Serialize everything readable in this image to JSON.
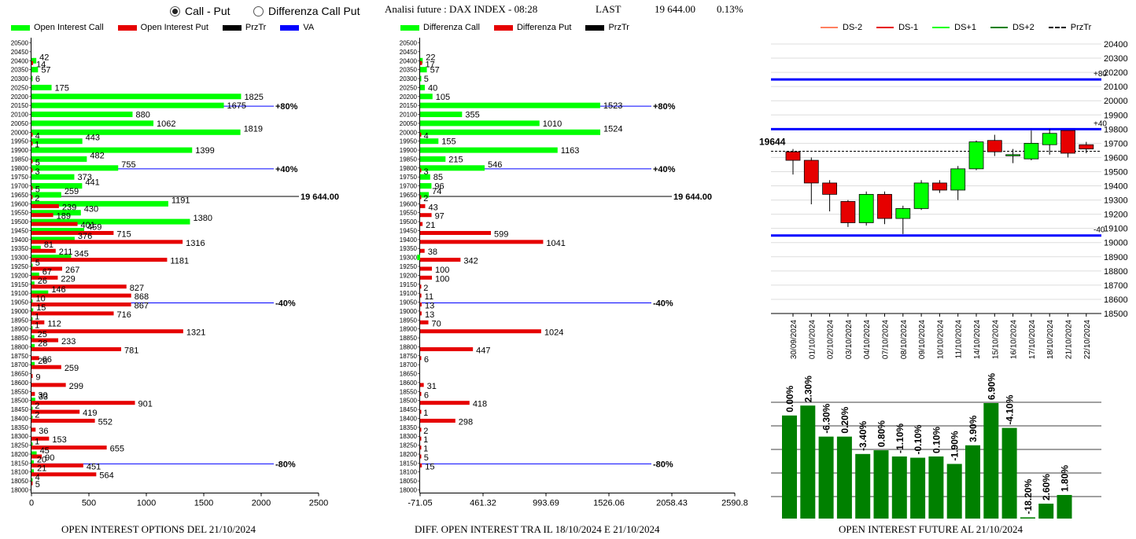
{
  "header": {
    "radio_call_put": "Call - Put",
    "radio_diff": "Differenza Call Put",
    "title": "Analisi future : DAX INDEX - 08:28",
    "last_label": "LAST",
    "last_value": "19 644.00",
    "change": "0.13%"
  },
  "colors": {
    "green": "#00ff00",
    "red": "#e60000",
    "blue": "#0000ff",
    "darkgreen": "#008000",
    "black": "#000000"
  },
  "captions": {
    "left": "OPEN INTEREST OPTIONS DEL 21/10/2024",
    "mid": "DIFF. OPEN INTEREST TRA IL 18/10/2024 E 21/10/2024",
    "right": "OPEN INTEREST FUTURE AL 21/10/2024"
  },
  "legend_left": [
    "Open Interest Call",
    "Open Interest Put",
    "PrzTr",
    "VA"
  ],
  "legend_mid": [
    "Differenza Call",
    "Differenza Put",
    "PrzTr"
  ],
  "legend_right": [
    "DS-2",
    "DS-1",
    "DS+1",
    "DS+2",
    "PrzTr"
  ],
  "chart_data": [
    {
      "type": "bar",
      "orientation": "horizontal",
      "strikes": [
        20500,
        20450,
        20400,
        20350,
        20300,
        20250,
        20200,
        20150,
        20100,
        20050,
        20000,
        19950,
        19900,
        19850,
        19800,
        19750,
        19700,
        19650,
        19600,
        19550,
        19500,
        19450,
        19400,
        19350,
        19300,
        19250,
        19200,
        19150,
        19100,
        19050,
        19000,
        18950,
        18900,
        18850,
        18800,
        18750,
        18700,
        18650,
        18600,
        18550,
        18500,
        18450,
        18400,
        18350,
        18300,
        18250,
        18200,
        18150,
        18100,
        18050,
        18000
      ],
      "series": [
        {
          "name": "Open Interest Call",
          "values": [
            0,
            0,
            42,
            57,
            6,
            175,
            1825,
            1675,
            880,
            1062,
            1819,
            443,
            1399,
            482,
            755,
            373,
            441,
            259,
            1191,
            430,
            1380,
            459,
            376,
            81,
            345,
            5,
            67,
            26,
            146,
            10,
            15,
            1,
            1,
            25,
            28,
            0,
            28,
            0,
            0,
            0,
            33,
            2,
            2,
            0,
            0,
            1,
            45,
            20,
            21,
            4,
            0
          ]
        },
        {
          "name": "Open Interest Put",
          "values": [
            0,
            0,
            14,
            0,
            0,
            0,
            0,
            0,
            0,
            0,
            4,
            1,
            0,
            5,
            3,
            0,
            5,
            2,
            239,
            189,
            401,
            715,
            1316,
            211,
            1181,
            267,
            229,
            827,
            868,
            867,
            716,
            112,
            1321,
            233,
            781,
            66,
            259,
            9,
            299,
            30,
            901,
            419,
            552,
            36,
            153,
            655,
            90,
            451,
            564,
            5,
            0
          ]
        }
      ],
      "annotations": [
        {
          "strike": 20150,
          "label": "+80%"
        },
        {
          "strike": 19800,
          "label": "+40%"
        },
        {
          "strike": 19650,
          "label": "19 644.00"
        },
        {
          "strike": 19050,
          "label": "-40%"
        },
        {
          "strike": 18150,
          "label": "-80%"
        }
      ],
      "xlim": [
        0,
        2500
      ],
      "xticks": [
        0,
        500,
        1000,
        1500,
        2000,
        2500
      ],
      "xtick_labels": [
        "0",
        "500",
        "1000",
        "1500",
        "2000",
        "2500"
      ]
    },
    {
      "type": "bar",
      "orientation": "horizontal",
      "strikes": [
        20500,
        20450,
        20400,
        20350,
        20300,
        20250,
        20200,
        20150,
        20100,
        20050,
        20000,
        19950,
        19900,
        19850,
        19800,
        19750,
        19700,
        19650,
        19600,
        19550,
        19500,
        19450,
        19400,
        19350,
        19300,
        19250,
        19200,
        19150,
        19100,
        19050,
        19000,
        18950,
        18900,
        18850,
        18800,
        18750,
        18700,
        18650,
        18600,
        18550,
        18500,
        18450,
        18400,
        18350,
        18300,
        18250,
        18200,
        18150,
        18100,
        18050,
        18000
      ],
      "series": [
        {
          "name": "Differenza Call",
          "values": [
            null,
            null,
            22,
            57,
            5,
            40,
            105,
            1523,
            355,
            1010,
            1524,
            155,
            1163,
            215,
            546,
            85,
            96,
            74,
            null,
            null,
            null,
            null,
            null,
            null,
            -25,
            null,
            null,
            null,
            null,
            null,
            null,
            null,
            null,
            null,
            null,
            null,
            null,
            null,
            null,
            null,
            null,
            null,
            null,
            null,
            null,
            null,
            null,
            null,
            null,
            null,
            null
          ]
        },
        {
          "name": "Differenza Put",
          "values": [
            null,
            null,
            17,
            null,
            null,
            null,
            null,
            null,
            null,
            null,
            4,
            null,
            null,
            null,
            3,
            null,
            null,
            2,
            43,
            97,
            21,
            599,
            1041,
            38,
            342,
            100,
            100,
            2,
            11,
            13,
            13,
            70,
            1024,
            null,
            447,
            6,
            null,
            null,
            31,
            6,
            418,
            1,
            298,
            2,
            1,
            1,
            5,
            15,
            null,
            null,
            null
          ]
        }
      ],
      "annotations": [
        {
          "strike": 20150,
          "label": "+80%"
        },
        {
          "strike": 19800,
          "label": "+40%"
        },
        {
          "strike": 19650,
          "label": "19 644.00"
        },
        {
          "strike": 19050,
          "label": "-40%"
        },
        {
          "strike": 18150,
          "label": "-80%"
        }
      ],
      "xlim": [
        -71.05,
        2590.8
      ],
      "xticks": [
        -71.05,
        461.32,
        993.69,
        1526.06,
        2058.43,
        2590.8
      ],
      "xtick_labels": [
        "-71.05",
        "461.32",
        "993.69",
        "1526.06",
        "2058.43",
        "2590.8"
      ]
    },
    {
      "type": "candlestick",
      "dates": [
        "30/09/2024",
        "01/10/2024",
        "02/10/2024",
        "03/10/2024",
        "04/10/2024",
        "07/10/2024",
        "08/10/2024",
        "09/10/2024",
        "10/10/2024",
        "11/10/2024",
        "14/10/2024",
        "15/10/2024",
        "16/10/2024",
        "17/10/2024",
        "18/10/2024",
        "21/10/2024",
        "22/10/2024"
      ],
      "ohlc": [
        [
          19640,
          19660,
          19480,
          19580
        ],
        [
          19580,
          19600,
          19270,
          19420
        ],
        [
          19420,
          19440,
          19220,
          19340
        ],
        [
          19290,
          19300,
          19110,
          19140
        ],
        [
          19140,
          19360,
          19120,
          19340
        ],
        [
          19340,
          19360,
          19130,
          19170
        ],
        [
          19170,
          19260,
          19060,
          19240
        ],
        [
          19240,
          19440,
          19230,
          19420
        ],
        [
          19420,
          19440,
          19350,
          19370
        ],
        [
          19370,
          19540,
          19300,
          19520
        ],
        [
          19520,
          19720,
          19510,
          19710
        ],
        [
          19720,
          19760,
          19610,
          19640
        ],
        [
          19620,
          19660,
          19560,
          19620
        ],
        [
          19590,
          19790,
          19580,
          19700
        ],
        [
          19690,
          19800,
          19620,
          19770
        ],
        [
          19790,
          19790,
          19600,
          19630
        ],
        [
          19690,
          19710,
          19630,
          19660
        ]
      ],
      "price_label": "19644",
      "levels": [
        {
          "value": 20150,
          "label": "+80"
        },
        {
          "value": 19800,
          "label": "+40"
        },
        {
          "value": 19050,
          "label": "-40"
        }
      ],
      "ylim": [
        18500,
        20400
      ],
      "yticks": [
        18500,
        18600,
        18700,
        18800,
        18900,
        19000,
        19100,
        19200,
        19300,
        19400,
        19500,
        19600,
        19700,
        19800,
        19900,
        20000,
        20100,
        20200,
        20300,
        20400
      ],
      "ytick_labels": [
        "18500",
        "18600",
        "18700",
        "18800",
        "18900",
        "19000",
        "19100",
        "19200",
        "19300",
        "19400",
        "19500",
        "19600",
        "19700",
        "19800",
        "19900",
        "20000",
        "20100",
        "20200",
        "20300",
        "20400"
      ]
    },
    {
      "type": "bar",
      "labels": [
        "0.00%",
        "2.30%",
        "-6.30%",
        "0.20%",
        "-3.40%",
        "0.80%",
        "-1.10%",
        "-0.10%",
        "0.10%",
        "-1.90%",
        "3.90%",
        "6.90%",
        "-4.10%",
        "-18.20%",
        "2.60%",
        "1.80%"
      ],
      "values": [
        0.0,
        2.3,
        -6.3,
        0.2,
        -3.4,
        0.8,
        -1.1,
        -0.1,
        0.1,
        -1.9,
        3.9,
        6.9,
        -4.1,
        -18.2,
        2.6,
        1.8
      ],
      "heights": [
        83,
        91,
        66,
        66,
        52,
        55,
        50,
        49,
        50,
        44,
        59,
        93,
        73,
        1,
        12,
        19
      ]
    }
  ]
}
